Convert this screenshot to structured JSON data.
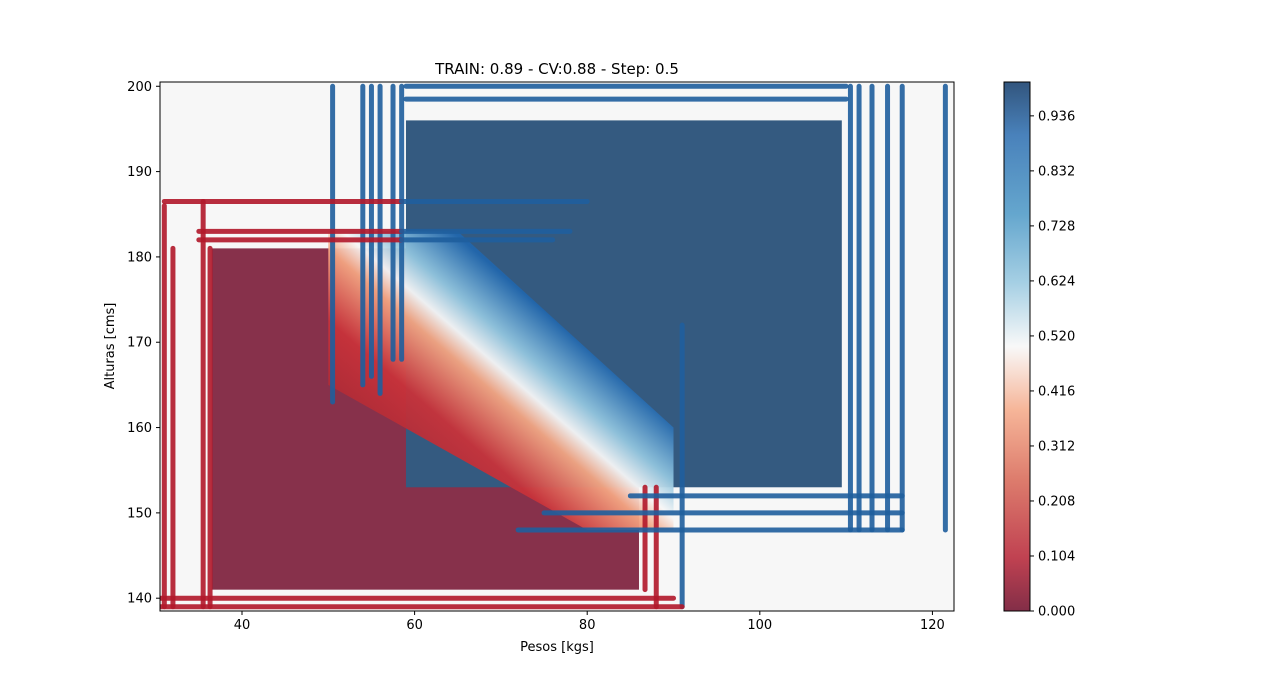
{
  "chart_data": {
    "type": "heatmap",
    "title": "TRAIN: 0.89 - CV:0.88 - Step: 0.5",
    "xlabel": "Pesos [kgs]",
    "ylabel": "Alturas [cms]",
    "xlim": [
      30.5,
      122.5
    ],
    "ylim": [
      138.5,
      200.5
    ],
    "x_ticks": [
      40,
      60,
      80,
      100,
      120
    ],
    "y_ticks": [
      140,
      150,
      160,
      170,
      180,
      190,
      200
    ],
    "colormap": "RdBu",
    "colorbar": {
      "range": [
        0,
        1
      ],
      "tick_values": [
        0.0,
        0.104,
        0.208,
        0.312,
        0.416,
        0.52,
        0.624,
        0.728,
        0.832,
        0.936
      ],
      "tick_labels": [
        "0.000",
        "0.104",
        "0.208",
        "0.312",
        "0.416",
        "0.520",
        "0.624",
        "0.728",
        "0.832",
        "0.936"
      ]
    },
    "regions": [
      {
        "label": "low-probability block",
        "x": [
          36.5,
          86
        ],
        "y": [
          141,
          181
        ],
        "value": 0.0
      },
      {
        "label": "high-probability block",
        "x": [
          59,
          109.5
        ],
        "y": [
          153,
          196
        ],
        "value": 1.0
      }
    ],
    "transition": {
      "description": "diagonal gradient from red to blue",
      "x": [
        50,
        90
      ],
      "y": [
        148,
        183
      ]
    },
    "vertical_stripes": [
      {
        "x": 31,
        "y": [
          139,
          186
        ],
        "value": 0.0
      },
      {
        "x": 32,
        "y": [
          139,
          181
        ],
        "value": 0.0
      },
      {
        "x": 35.5,
        "y": [
          139,
          186.5
        ],
        "value": 0.0
      },
      {
        "x": 36.3,
        "y": [
          139,
          181
        ],
        "value": 0.0
      },
      {
        "x": 50.5,
        "y": [
          163,
          200
        ],
        "value": 1.0
      },
      {
        "x": 54,
        "y": [
          165,
          200
        ],
        "value": 1.0
      },
      {
        "x": 55,
        "y": [
          166,
          200
        ],
        "value": 1.0
      },
      {
        "x": 56,
        "y": [
          164,
          200
        ],
        "value": 1.0
      },
      {
        "x": 57.5,
        "y": [
          168,
          200
        ],
        "value": 1.0
      },
      {
        "x": 58.5,
        "y": [
          168,
          200
        ],
        "value": 1.0
      },
      {
        "x": 86.7,
        "y": [
          141,
          153
        ],
        "value": 0.0
      },
      {
        "x": 88,
        "y": [
          139,
          153
        ],
        "value": 0.0
      },
      {
        "x": 91,
        "y": [
          139,
          172
        ],
        "value": 1.0
      },
      {
        "x": 110.5,
        "y": [
          148,
          200
        ],
        "value": 1.0
      },
      {
        "x": 111.5,
        "y": [
          148,
          200
        ],
        "value": 1.0
      },
      {
        "x": 113,
        "y": [
          148,
          200
        ],
        "value": 1.0
      },
      {
        "x": 114.8,
        "y": [
          148,
          200
        ],
        "value": 1.0
      },
      {
        "x": 116.5,
        "y": [
          148,
          200
        ],
        "value": 1.0
      },
      {
        "x": 121.5,
        "y": [
          148,
          200
        ],
        "value": 1.0
      }
    ],
    "horizontal_stripes": [
      {
        "y": 200,
        "x": [
          59,
          110
        ],
        "value": 1.0
      },
      {
        "y": 198.5,
        "x": [
          59,
          110
        ],
        "value": 1.0
      },
      {
        "y": 186.5,
        "x": [
          31,
          58.5
        ],
        "value": 0.0
      },
      {
        "y": 186.5,
        "x": [
          58.5,
          80
        ],
        "value": 1.0
      },
      {
        "y": 183,
        "x": [
          35,
          58.5
        ],
        "value": 0.0
      },
      {
        "y": 183,
        "x": [
          58.5,
          78
        ],
        "value": 1.0
      },
      {
        "y": 182,
        "x": [
          35,
          58.5
        ],
        "value": 0.0
      },
      {
        "y": 182,
        "x": [
          58.5,
          76
        ],
        "value": 1.0
      },
      {
        "y": 152,
        "x": [
          85,
          116.5
        ],
        "value": 1.0
      },
      {
        "y": 150,
        "x": [
          75,
          116.5
        ],
        "value": 1.0
      },
      {
        "y": 148,
        "x": [
          72,
          116.5
        ],
        "value": 1.0
      },
      {
        "y": 140,
        "x": [
          30.5,
          90
        ],
        "value": 0.0
      },
      {
        "y": 139,
        "x": [
          30.5,
          91
        ],
        "value": 0.0
      }
    ]
  }
}
